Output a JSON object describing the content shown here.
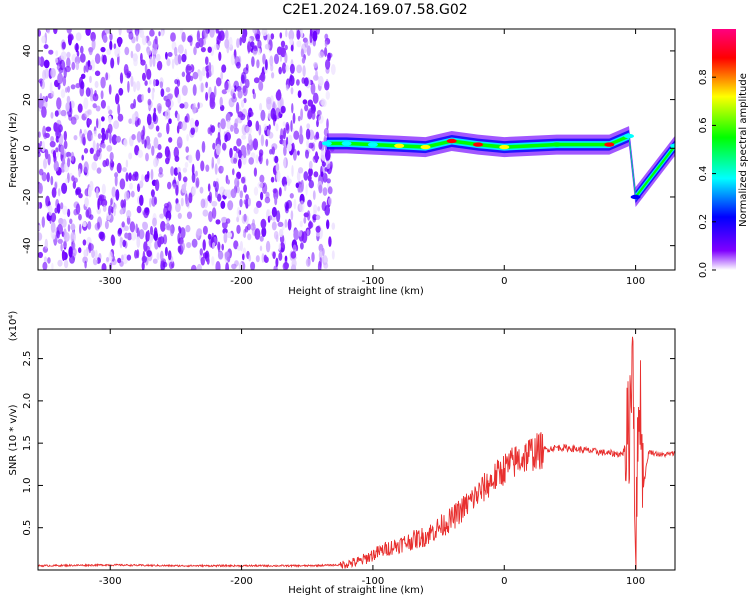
{
  "title": "C2E1.2024.169.07.58.G02",
  "chart_data": [
    {
      "type": "heatmap",
      "xlabel": "Height of straight line (km)",
      "ylabel": "Frequency (Hz)",
      "xlim": [
        -355,
        130
      ],
      "ylim": [
        -50,
        49
      ],
      "xticks": [
        -300,
        -200,
        -100,
        0,
        100
      ],
      "xtick_labels": [
        "-300",
        "-200",
        "-100",
        "0",
        "100"
      ],
      "yticks": [
        -40,
        -20,
        0,
        20,
        40
      ],
      "ytick_labels": [
        "-40",
        "-20",
        "0",
        "20",
        "40"
      ],
      "noise_region_x": [
        -355,
        -130
      ],
      "signal_band": [
        {
          "x": -135,
          "freq": 2,
          "amp": 0.45
        },
        {
          "x": -120,
          "freq": 2,
          "amp": 0.5
        },
        {
          "x": -100,
          "freq": 1.5,
          "amp": 0.55
        },
        {
          "x": -80,
          "freq": 1,
          "amp": 0.8
        },
        {
          "x": -60,
          "freq": 0.5,
          "amp": 0.85
        },
        {
          "x": -40,
          "freq": 3,
          "amp": 0.9
        },
        {
          "x": -20,
          "freq": 1.5,
          "amp": 0.9
        },
        {
          "x": 0,
          "freq": 0.5,
          "amp": 0.85
        },
        {
          "x": 40,
          "freq": 1.5,
          "amp": 0.6
        },
        {
          "x": 80,
          "freq": 1.5,
          "amp": 0.95
        },
        {
          "x": 95,
          "freq": 5,
          "amp": 0.5
        },
        {
          "x": 100,
          "freq": -20,
          "amp": 0.3
        },
        {
          "x": 130,
          "freq": 1,
          "amp": 0.5
        }
      ],
      "colorbar": {
        "label": "Normalized spectral amplitude",
        "ticks": [
          "0.0",
          "0.2",
          "0.4",
          "0.6",
          "0.8"
        ],
        "range": [
          0,
          1
        ],
        "colors": [
          "#ffffff",
          "#8000ff",
          "#0000ff",
          "#00ffff",
          "#00ff00",
          "#ffff00",
          "#ff0000",
          "#ff0080"
        ]
      }
    },
    {
      "type": "line",
      "xlabel": "Height of straight line (km)",
      "ylabel": "SNR (10 * v/v)",
      "y_multiplier": "(x10⁴)",
      "xlim": [
        -355,
        130
      ],
      "ylim": [
        0,
        2.85
      ],
      "xticks": [
        -300,
        -200,
        -100,
        0,
        100
      ],
      "xtick_labels": [
        "-300",
        "-200",
        "-100",
        "0",
        "100"
      ],
      "yticks": [
        0.5,
        1.0,
        1.5,
        2.0,
        2.5
      ],
      "ytick_labels": [
        "0.5",
        "1.0",
        "1.5",
        "2.0",
        "2.5"
      ],
      "series": [
        {
          "color": "#e8302f",
          "x": [
            -355,
            -300,
            -250,
            -200,
            -150,
            -125,
            -110,
            -100,
            -90,
            -80,
            -70,
            -60,
            -50,
            -40,
            -30,
            -20,
            -10,
            0,
            10,
            20,
            30,
            40,
            50,
            60,
            70,
            80,
            90,
            95,
            98,
            100,
            103,
            106,
            110,
            120,
            130
          ],
          "y": [
            0.05,
            0.06,
            0.05,
            0.05,
            0.05,
            0.06,
            0.1,
            0.18,
            0.25,
            0.3,
            0.35,
            0.4,
            0.5,
            0.6,
            0.75,
            0.9,
            1.05,
            1.2,
            1.3,
            1.38,
            1.42,
            1.45,
            1.44,
            1.42,
            1.4,
            1.38,
            1.37,
            1.6,
            2.8,
            0.1,
            2.3,
            1.0,
            1.4,
            1.36,
            1.38
          ]
        }
      ]
    }
  ]
}
